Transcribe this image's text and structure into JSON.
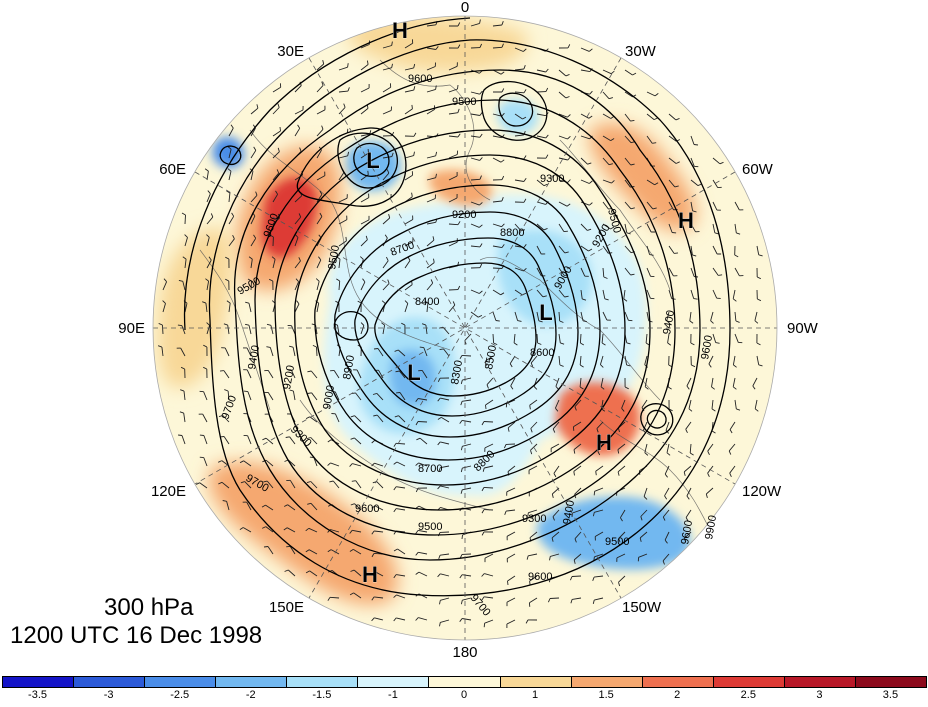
{
  "caption": {
    "level": "300 hPa",
    "time": "1200 UTC 16 Dec 1998"
  },
  "longitude_labels": {
    "0": "0",
    "30W": "30W",
    "60W": "60W",
    "90W": "90W",
    "120W": "120W",
    "150W": "150W",
    "180": "180",
    "150E": "150E",
    "120E": "120E",
    "90E": "90E",
    "60E": "60E",
    "30E": "30E"
  },
  "colorbar": {
    "colors": [
      "#1414c8",
      "#2c5ad8",
      "#4a8de8",
      "#72b8f0",
      "#a8e0f8",
      "#d8f4fc",
      "#fdf7d8",
      "#f8d898",
      "#f5a870",
      "#ee7050",
      "#dd3a35",
      "#b81828",
      "#8c0a1c"
    ],
    "tick_labels": [
      "-3.5",
      "-3",
      "-2.5",
      "-2",
      "-1.5",
      "-1",
      "0",
      "1",
      "1.5",
      "2",
      "2.5",
      "3",
      "3.5"
    ]
  },
  "pressure_centers": {
    "h_north": "H",
    "h_east": "H",
    "h_southeast": "H",
    "h_south": "H",
    "l_ural": "L",
    "l_siberia": "L",
    "l_arctic": "L"
  },
  "contour_labels": {
    "c9600_top": "9600",
    "c9500_top": "9500",
    "c9300_ne": "9300",
    "c9500_ne": "9500",
    "c9200_ne": "9200",
    "c9200_n": "9200",
    "c8800": "8800",
    "c8700_n": "8700",
    "c8600_e": "8600",
    "c8500": "8500",
    "c8300": "8300",
    "c8400": "8400",
    "c8700_s": "8700",
    "c8800_s": "8800",
    "c9300_s": "9300",
    "c9500_s": "9500",
    "c9600_s": "9600",
    "c9700_s": "9700",
    "c9400_se": "9400",
    "c9600_e": "9600",
    "c9400_e": "9400",
    "c9200_w": "9200",
    "c9300_w": "9300",
    "c9600_w": "9600",
    "c9700_w": "9700",
    "c9500_w": "9500",
    "c9600_nw": "9600",
    "c9700_nw": "9700",
    "c9000_w": "9000",
    "c9000_e": "9000",
    "c8900": "8900",
    "c9400_w": "9400",
    "c9500_nw": "9500",
    "c9900_e": "9900",
    "c9600_far_e": "9600"
  }
}
